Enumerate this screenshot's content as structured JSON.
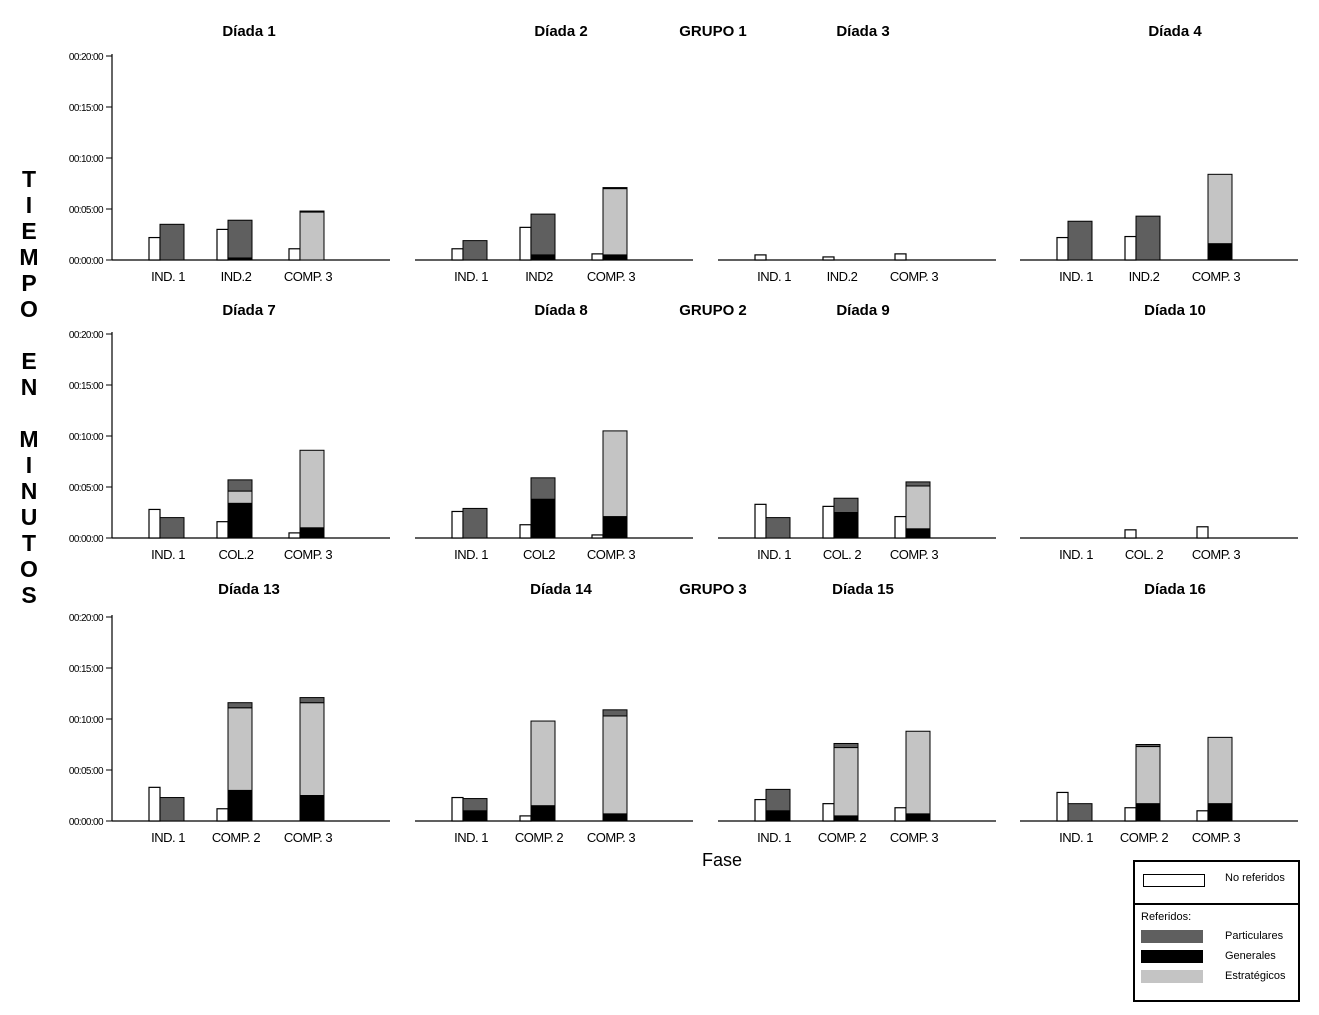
{
  "chart_data": {
    "type": "bar",
    "y_axis_title": "TIEMPO EN MINUTOS",
    "x_axis_title": "Fase",
    "y_ticks": [
      "00:00:00",
      "00:05:00",
      "00:10:00",
      "00:15:00",
      "00:20:00"
    ],
    "ylim_minutes": [
      0,
      20
    ],
    "groups": [
      {
        "name": "GRUPO 1",
        "panels": [
          {
            "title": "Díada 1",
            "phases": [
              {
                "label": "IND. 1",
                "no_referidos": 2.2,
                "generales": 0,
                "estrategicos": 0,
                "particulares": 3.5
              },
              {
                "label": "IND.2",
                "no_referidos": 3.0,
                "generales": 0.2,
                "estrategicos": 0,
                "particulares": 3.7
              },
              {
                "label": "COMP. 3",
                "no_referidos": 1.1,
                "generales": 0,
                "estrategicos": 4.7,
                "particulares": 0.1
              }
            ]
          },
          {
            "title": "Díada 2",
            "phases": [
              {
                "label": "IND. 1",
                "no_referidos": 1.1,
                "generales": 0,
                "estrategicos": 0,
                "particulares": 1.9
              },
              {
                "label": "IND2",
                "no_referidos": 3.2,
                "generales": 0.5,
                "estrategicos": 0,
                "particulares": 4.0
              },
              {
                "label": "COMP. 3",
                "no_referidos": 0.6,
                "generales": 0.5,
                "estrategicos": 6.5,
                "particulares": 0.1
              }
            ]
          },
          {
            "title": "Díada 3",
            "phases": [
              {
                "label": "IND. 1",
                "no_referidos": 0.5,
                "generales": 0,
                "estrategicos": 0,
                "particulares": 0
              },
              {
                "label": "IND.2",
                "no_referidos": 0.3,
                "generales": 0,
                "estrategicos": 0,
                "particulares": 0
              },
              {
                "label": "COMP. 3",
                "no_referidos": 0.6,
                "generales": 0,
                "estrategicos": 0,
                "particulares": 0
              }
            ]
          },
          {
            "title": "Díada 4",
            "phases": [
              {
                "label": "IND. 1",
                "no_referidos": 2.2,
                "generales": 0,
                "estrategicos": 0,
                "particulares": 3.8
              },
              {
                "label": "IND.2",
                "no_referidos": 2.3,
                "generales": 0,
                "estrategicos": 0,
                "particulares": 4.3
              },
              {
                "label": "COMP. 3",
                "no_referidos": 0,
                "generales": 1.6,
                "estrategicos": 6.8,
                "particulares": 0
              }
            ]
          }
        ]
      },
      {
        "name": "GRUPO 2",
        "panels": [
          {
            "title": "Díada 7",
            "phases": [
              {
                "label": "IND. 1",
                "no_referidos": 2.8,
                "generales": 0,
                "estrategicos": 0,
                "particulares": 2.0
              },
              {
                "label": "COL.2",
                "no_referidos": 1.6,
                "generales": 3.4,
                "estrategicos": 1.2,
                "particulares": 1.1
              },
              {
                "label": "COMP. 3",
                "no_referidos": 0.5,
                "generales": 1.0,
                "estrategicos": 7.6,
                "particulares": 0
              }
            ]
          },
          {
            "title": "Díada 8",
            "phases": [
              {
                "label": "IND. 1",
                "no_referidos": 2.6,
                "generales": 0,
                "estrategicos": 0,
                "particulares": 2.9
              },
              {
                "label": "COL2",
                "no_referidos": 1.3,
                "generales": 3.8,
                "estrategicos": 0,
                "particulares": 2.1
              },
              {
                "label": "COMP. 3",
                "no_referidos": 0.3,
                "generales": 2.1,
                "estrategicos": 8.4,
                "particulares": 0
              }
            ]
          },
          {
            "title": "Díada 9",
            "phases": [
              {
                "label": "IND. 1",
                "no_referidos": 3.3,
                "generales": 0,
                "estrategicos": 0,
                "particulares": 2.0
              },
              {
                "label": "COL. 2",
                "no_referidos": 3.1,
                "generales": 2.5,
                "estrategicos": 0,
                "particulares": 1.4
              },
              {
                "label": "COMP. 3",
                "no_referidos": 2.1,
                "generales": 0.9,
                "estrategicos": 4.2,
                "particulares": 0.4
              }
            ]
          },
          {
            "title": "Díada 10",
            "phases": [
              {
                "label": "IND. 1",
                "no_referidos": 0,
                "generales": 0,
                "estrategicos": 0,
                "particulares": 0
              },
              {
                "label": "COL. 2",
                "no_referidos": 0.8,
                "generales": 0,
                "estrategicos": 0,
                "particulares": 0
              },
              {
                "label": "COMP. 3",
                "no_referidos": 1.1,
                "generales": 0,
                "estrategicos": 0,
                "particulares": 0
              }
            ]
          }
        ]
      },
      {
        "name": "GRUPO 3",
        "panels": [
          {
            "title": "Díada 13",
            "phases": [
              {
                "label": "IND. 1",
                "no_referidos": 3.3,
                "generales": 0,
                "estrategicos": 0,
                "particulares": 2.3
              },
              {
                "label": "COMP. 2",
                "no_referidos": 1.2,
                "generales": 3.0,
                "estrategicos": 8.1,
                "particulares": 0.5
              },
              {
                "label": "COMP. 3",
                "no_referidos": 0,
                "generales": 2.5,
                "estrategicos": 9.1,
                "particulares": 0.5
              }
            ]
          },
          {
            "title": "Díada 14",
            "phases": [
              {
                "label": "IND. 1",
                "no_referidos": 2.3,
                "generales": 1.0,
                "estrategicos": 0,
                "particulares": 1.2
              },
              {
                "label": "COMP. 2",
                "no_referidos": 0.5,
                "generales": 1.5,
                "estrategicos": 8.3,
                "particulares": 0
              },
              {
                "label": "COMP. 3",
                "no_referidos": 0,
                "generales": 0.7,
                "estrategicos": 9.6,
                "particulares": 0.6
              }
            ]
          },
          {
            "title": "Díada 15",
            "phases": [
              {
                "label": "IND. 1",
                "no_referidos": 2.1,
                "generales": 1.0,
                "estrategicos": 0,
                "particulares": 2.1
              },
              {
                "label": "COMP. 2",
                "no_referidos": 1.7,
                "generales": 0.5,
                "estrategicos": 6.7,
                "particulares": 0.4
              },
              {
                "label": "COMP. 3",
                "no_referidos": 1.3,
                "generales": 0.7,
                "estrategicos": 8.1,
                "particulares": 0
              }
            ]
          },
          {
            "title": "Díada 16",
            "phases": [
              {
                "label": "IND. 1",
                "no_referidos": 2.8,
                "generales": 0,
                "estrategicos": 0,
                "particulares": 1.7
              },
              {
                "label": "COMP. 2",
                "no_referidos": 1.3,
                "generales": 1.7,
                "estrategicos": 5.6,
                "particulares": 0.2
              },
              {
                "label": "COMP. 3",
                "no_referidos": 1.0,
                "generales": 1.7,
                "estrategicos": 6.5,
                "particulares": 0
              }
            ]
          }
        ]
      }
    ],
    "legend": {
      "no_referidos": "No referidos",
      "referidos_header": "Referidos:",
      "particulares": "Particulares",
      "generales": "Generales",
      "estrategicos": "Estratégicos"
    },
    "colors": {
      "particulares": "#5f5f5f",
      "generales": "#000000",
      "estrategicos": "#c4c4c4",
      "no_referidos": "#ffffff",
      "outline": "#000000"
    }
  }
}
